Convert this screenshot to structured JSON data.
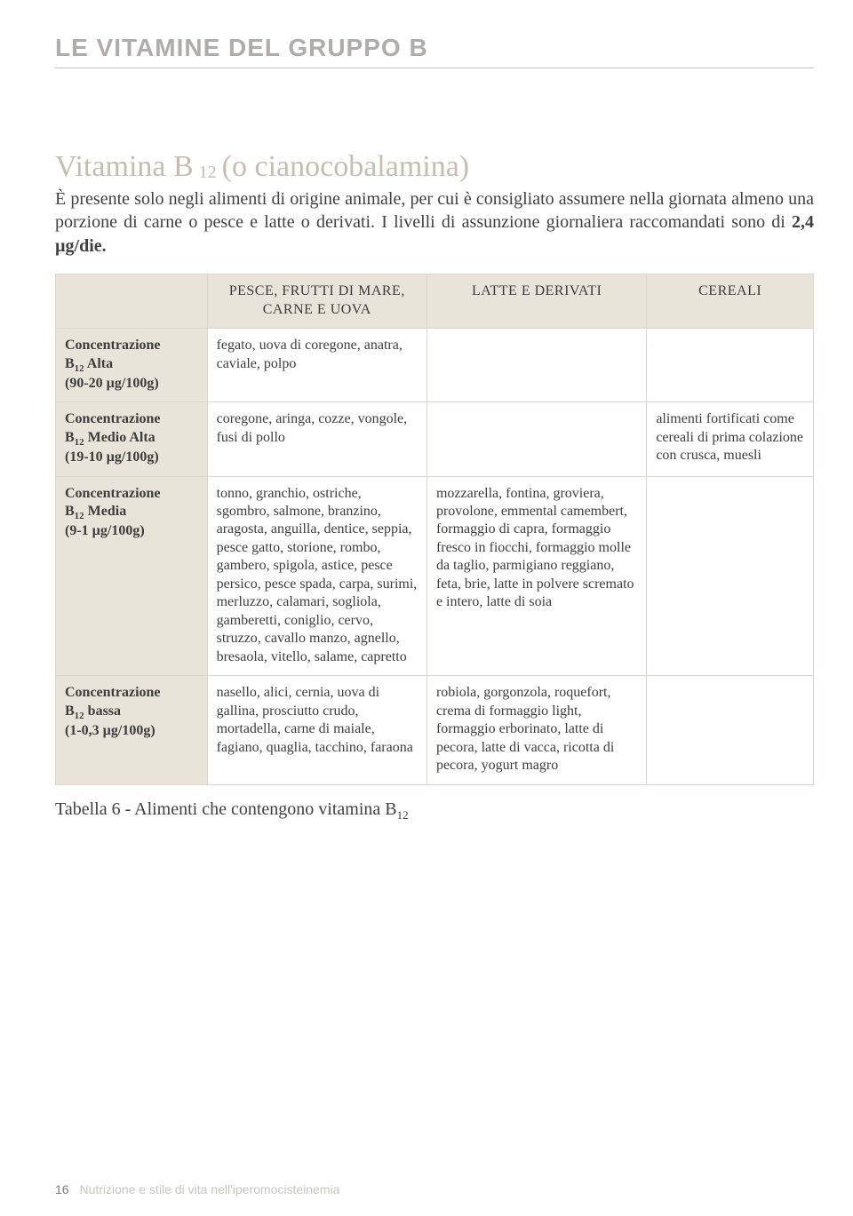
{
  "header": {
    "section_title": "LE VITAMINE DEL GRUPPO B"
  },
  "title": {
    "prefix": "Vitamina B",
    "sub": "12",
    "suffix": " (o cianocobalamina)"
  },
  "intro": {
    "part1": "È presente solo negli alimenti di origine animale, per cui è consigliato assumere nella giornata almeno una porzione di carne o pesce e latte o derivati. I livelli di assunzione giornaliera raccomandati sono di ",
    "bold": "2,4 µg/die.",
    "part2": ""
  },
  "table": {
    "columns": {
      "c1": "PESCE, FRUTTI DI MARE,\nCARNE E UOVA",
      "c2": "LATTE E DERIVATI",
      "c3": "CEREALI"
    },
    "rows": [
      {
        "label_line1": "Concentrazione",
        "label_b": "B",
        "label_sub": "12",
        "label_after": " Alta",
        "label_line3": "(90-20 µg/100g)",
        "c1": "fegato, uova di coregone, anatra, caviale, polpo",
        "c2": "",
        "c3": ""
      },
      {
        "label_line1": "Concentrazione",
        "label_b": "B",
        "label_sub": "12",
        "label_after": " Medio Alta",
        "label_line3": "(19-10 µg/100g)",
        "c1": "coregone, aringa, cozze, vongole, fusi di pollo",
        "c2": "",
        "c3": "alimenti fortificati come cereali di prima colazione con crusca, muesli"
      },
      {
        "label_line1": "Concentrazione",
        "label_b": "B",
        "label_sub": "12",
        "label_after": " Media",
        "label_line3": "(9-1 µg/100g)",
        "c1": "tonno, granchio, ostriche, sgombro, salmone, branzino, aragosta, anguilla, dentice, seppia, pesce gatto, storione, rombo, gambero, spigola, astice, pesce persico, pesce spada, carpa, surimi, merluzzo, calamari, sogliola, gamberetti, coniglio, cervo, struzzo, cavallo manzo, agnello, bresaola, vitello, salame, capretto",
        "c2": "mozzarella, fontina, groviera, provolone, emmental camembert, formaggio di capra, formaggio fresco in fiocchi, formaggio molle da taglio, parmigiano reggiano, feta, brie, latte in polvere scremato e intero, latte di soia",
        "c3": ""
      },
      {
        "label_line1": "Concentrazione",
        "label_b": "B",
        "label_sub": "12",
        "label_after": " bassa",
        "label_line3": "(1-0,3 µg/100g)",
        "c1": "nasello, alici, cernia, uova di gallina, prosciutto crudo, mortadella, carne di maiale, fagiano, quaglia, tacchino, faraona",
        "c2": "robiola, gorgonzola, roquefort, crema di formaggio light, formaggio erborinato, latte di pecora, latte di vacca, ricotta di pecora, yogurt magro",
        "c3": ""
      }
    ]
  },
  "caption": {
    "prefix": "Tabella 6 - Alimenti che contengono vitamina B",
    "sub": "12"
  },
  "footer": {
    "page_number": "16",
    "text": "Nutrizione e stile di vita nell'iperomocisteinemia"
  },
  "style": {
    "section_header_color": "#b0acaa",
    "title_color": "#c6bdaf",
    "table_head_bg": "#e9e4da",
    "border_color": "#dcd6cc",
    "body_text_color": "#3d3d3d",
    "footer_muted_color": "#c9c3bd",
    "footer_pagenum_color": "#7b7b7b"
  }
}
